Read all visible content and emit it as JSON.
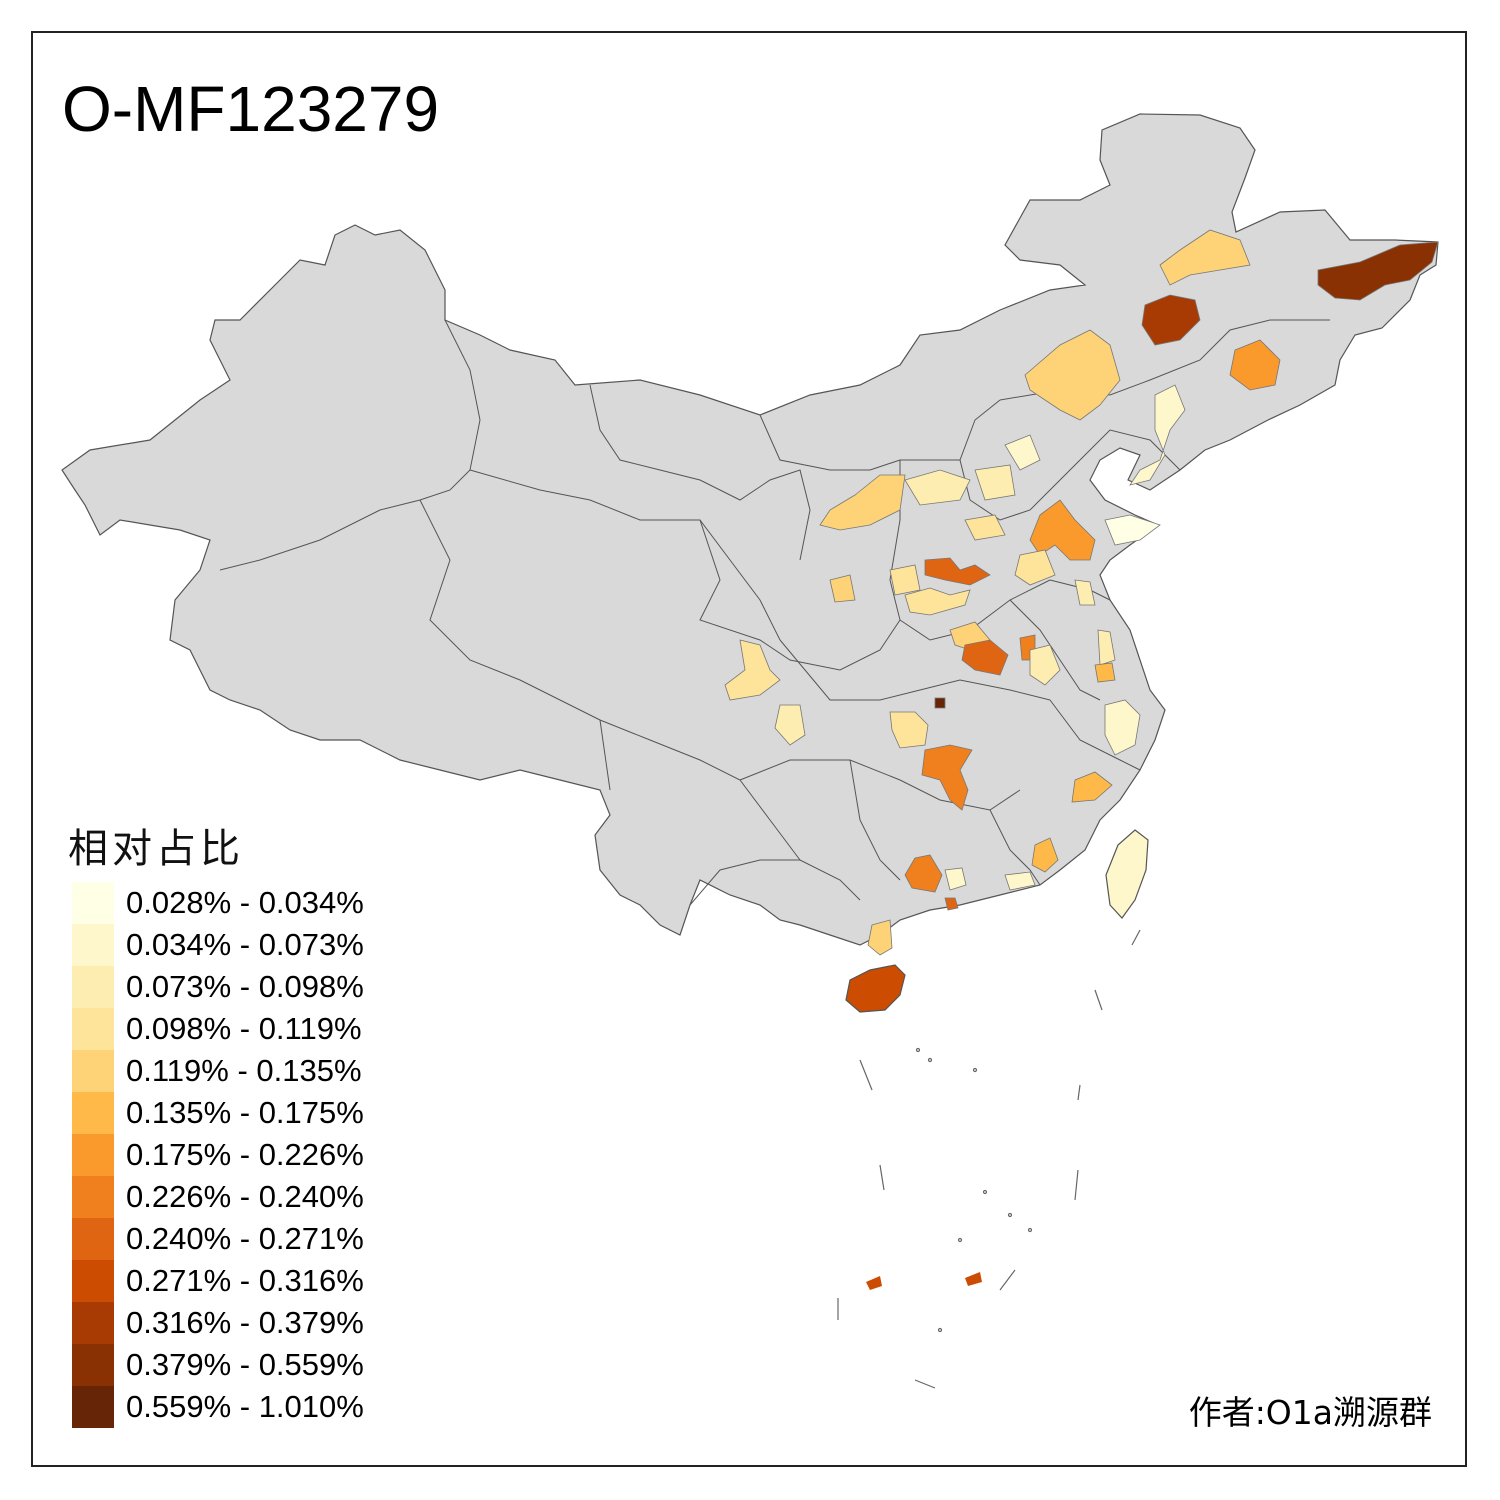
{
  "title": "O-MF123279",
  "author": "作者:O1a溯源群",
  "legend": {
    "title": "相对占比",
    "items": [
      {
        "label": "0.028% - 0.034%",
        "color": "#FFFFE5"
      },
      {
        "label": "0.034% - 0.073%",
        "color": "#FFF7CC"
      },
      {
        "label": "0.073% - 0.098%",
        "color": "#FEEDB0"
      },
      {
        "label": "0.098% - 0.119%",
        "color": "#FEE39A"
      },
      {
        "label": "0.119% - 0.135%",
        "color": "#FED277"
      },
      {
        "label": "0.135% - 0.175%",
        "color": "#FEB949"
      },
      {
        "label": "0.175% - 0.226%",
        "color": "#FB9A2C"
      },
      {
        "label": "0.226% - 0.240%",
        "color": "#F0801E"
      },
      {
        "label": "0.240% - 0.271%",
        "color": "#E06513"
      },
      {
        "label": "0.271% - 0.316%",
        "color": "#CC4C02"
      },
      {
        "label": "0.316% - 0.379%",
        "color": "#A83B03"
      },
      {
        "label": "0.379% - 0.559%",
        "color": "#8A3104"
      },
      {
        "label": "0.559% - 1.010%",
        "color": "#662506"
      }
    ]
  },
  "colors": {
    "land": "#D9D9D9",
    "border": "#555555",
    "frame": "#222222"
  }
}
